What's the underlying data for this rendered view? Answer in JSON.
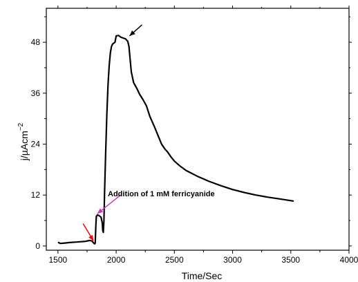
{
  "chart_data": {
    "type": "line",
    "xlabel": "Time/Sec",
    "ylabel_main": "j/µAcm",
    "ylabel_sup": "−2",
    "xlim": [
      1400,
      4000
    ],
    "ylim": [
      -1,
      56
    ],
    "x_ticks": [
      1500,
      2000,
      2500,
      3000,
      3500,
      4000
    ],
    "y_ticks": [
      0,
      12,
      24,
      36,
      48
    ],
    "x_tick_labels": [
      "1500",
      "2000",
      "2500",
      "3000",
      "3500",
      "4000"
    ],
    "y_tick_labels": [
      "0",
      "12",
      "24",
      "36",
      "48"
    ],
    "grid": false,
    "series": [
      {
        "color": "#000000",
        "x": [
          1505,
          1520,
          1560,
          1600,
          1650,
          1700,
          1740,
          1770,
          1790,
          1800,
          1810,
          1815,
          1820,
          1825,
          1830,
          1840,
          1850,
          1860,
          1870,
          1880,
          1885,
          1890,
          1895,
          1900,
          1910,
          1920,
          1930,
          1940,
          1950,
          1960,
          1970,
          1980,
          1990,
          2000,
          2020,
          2040,
          2060,
          2080,
          2100,
          2110,
          2120,
          2130,
          2150,
          2180,
          2200,
          2230,
          2260,
          2290,
          2330,
          2360,
          2390,
          2420,
          2440,
          2470,
          2500,
          2550,
          2600,
          2700,
          2800,
          2900,
          3000,
          3100,
          3200,
          3300,
          3400,
          3520
        ],
        "y": [
          0.8,
          0.6,
          0.7,
          0.8,
          0.9,
          1.0,
          1.1,
          1.3,
          1.2,
          0.9,
          0.6,
          0.5,
          0.7,
          4.5,
          7.0,
          7.3,
          7.2,
          7.0,
          6.8,
          5.5,
          3.6,
          3.2,
          6.0,
          12.0,
          22.0,
          31.0,
          38.0,
          42.5,
          45.5,
          47.0,
          47.6,
          47.8,
          48.0,
          49.5,
          49.6,
          49.2,
          49.0,
          48.8,
          48.2,
          47.0,
          44.0,
          41.0,
          38.5,
          37.0,
          35.8,
          34.5,
          33.0,
          30.5,
          28.0,
          26.0,
          24.0,
          22.8,
          22.2,
          21.0,
          20.0,
          18.8,
          17.8,
          16.4,
          15.2,
          14.2,
          13.3,
          12.6,
          12.0,
          11.5,
          11.1,
          10.6
        ]
      }
    ],
    "annotations": [
      {
        "text": "Addition of 1 mM ferricyanide",
        "color": "#000000"
      }
    ],
    "arrows": [
      {
        "name": "red",
        "color": "#ff0000",
        "points_to_x": 1805,
        "points_to_y": 1.2
      },
      {
        "name": "magenta",
        "color": "#cc33cc",
        "points_to_x": 1838,
        "points_to_y": 7.6
      },
      {
        "name": "black",
        "color": "#000000",
        "points_to_x": 2115,
        "points_to_y": 49.5
      }
    ]
  }
}
